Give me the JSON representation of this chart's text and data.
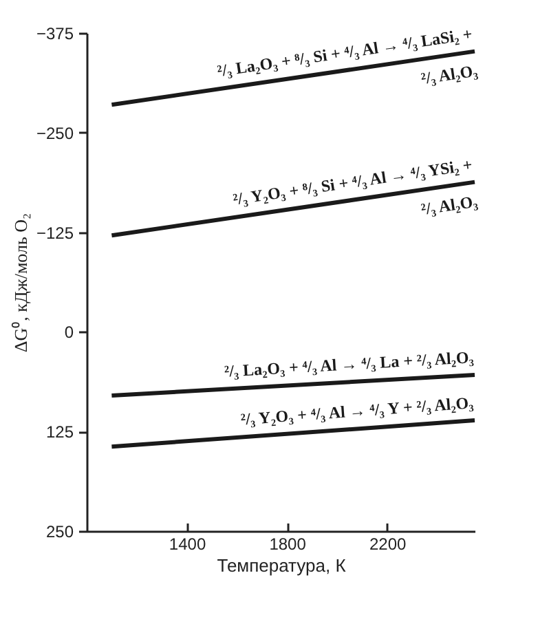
{
  "chart_data": {
    "type": "line",
    "xlabel": "Температура, К",
    "ylabel": "ΔG⁰, кДж/моль O₂",
    "x": [
      1100,
      2550
    ],
    "series": [
      {
        "name": "²/₃ La₂O₃ + ⁸/₃ Si + ⁴/₃ Al → ⁴/₃ LaSi₂ + ²/₃ Al₂O₃",
        "color": "#1a1a1a",
        "values": [
          -285,
          -352
        ]
      },
      {
        "name": "²/₃ Y₂O₃ + ⁸/₃ Si + ⁴/₃ Al → ⁴/₃ YSi₂ + ²/₃ Al₂O₃",
        "color": "#1a1a1a",
        "values": [
          -121,
          -188
        ]
      },
      {
        "name": "²/₃ La₂O₃ + ⁴/₃ Al → ⁴/₃ La + ²/₃ Al₂O₃",
        "color": "#1a1a1a",
        "values": [
          80,
          54
        ]
      },
      {
        "name": "²/₃ Y₂O₃ + ⁴/₃ Al → ⁴/₃ Y + ²/₃ Al₂O₃",
        "color": "#1a1a1a",
        "values": [
          144,
          111
        ]
      }
    ],
    "xlim": [
      1000,
      2550
    ],
    "xticks": [
      1400,
      1800,
      2200
    ],
    "ylim": [
      250,
      -375
    ],
    "yticks": [
      -375,
      -250,
      -125,
      0,
      125,
      250
    ],
    "grid": false,
    "legend": false,
    "marker": "none",
    "line_style": "solid"
  }
}
